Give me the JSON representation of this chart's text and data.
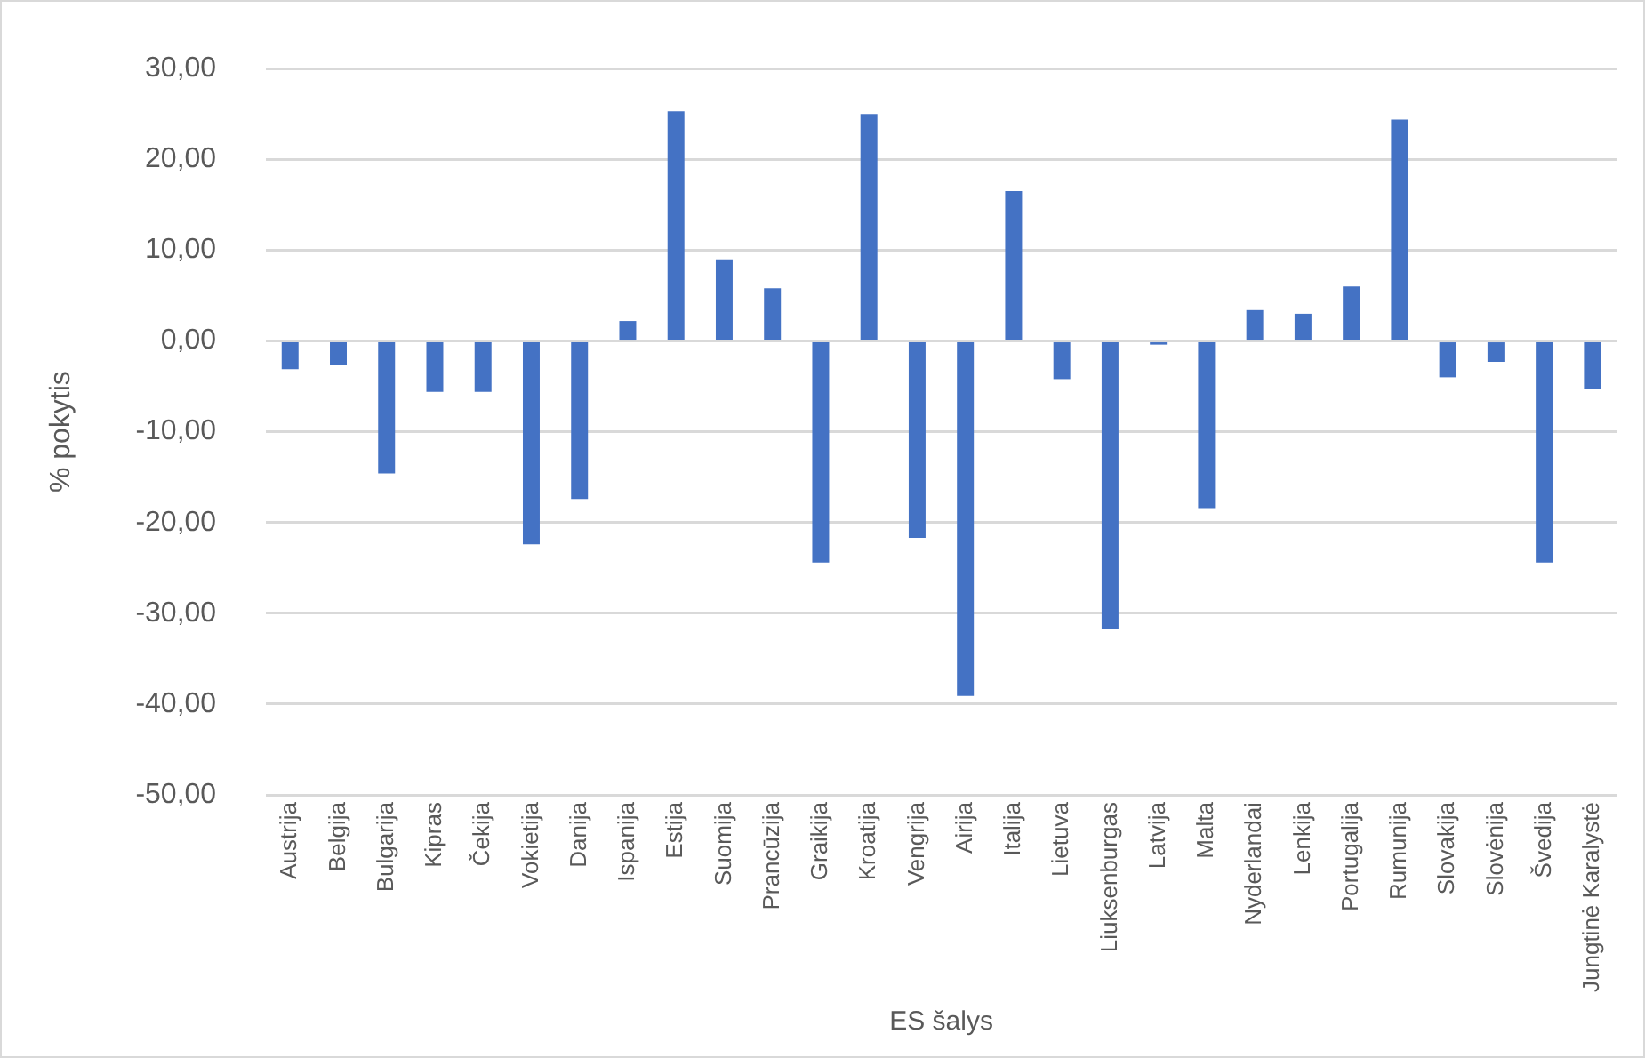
{
  "chart_data": {
    "type": "bar",
    "xlabel": "ES šalys",
    "ylabel": "% pokytis",
    "categories": [
      "Austrija",
      "Belgija",
      "Bulgarija",
      "Kipras",
      "Čekija",
      "Vokietija",
      "Danija",
      "Ispanija",
      "Estija",
      "Suomija",
      "Prancūzija",
      "Graikija",
      "Kroatija",
      "Vengrija",
      "Airija",
      "Italija",
      "Lietuva",
      "Liuksenburgas",
      "Latvija",
      "Malta",
      "Nyderlandai",
      "Lenkija",
      "Portugalija",
      "Rumunija",
      "Slovakija",
      "Slovėnija",
      "Švedija",
      "Jungtinė Karalystė"
    ],
    "values": [
      -3.1,
      -2.6,
      -14.6,
      -5.6,
      -5.6,
      -22.4,
      -17.4,
      2.2,
      25.3,
      9.0,
      5.8,
      -24.4,
      25.0,
      -21.7,
      -39.1,
      16.5,
      -4.2,
      -31.7,
      -0.4,
      -18.4,
      3.4,
      3.0,
      6.0,
      24.4,
      -4.0,
      -2.3,
      -24.4,
      -5.3
    ],
    "color": "#4472c4",
    "ylim": [
      -50,
      30
    ],
    "yticks": [
      {
        "value": -50,
        "label": "-50,00"
      },
      {
        "value": -40,
        "label": "-40,00"
      },
      {
        "value": -30,
        "label": "-30,00"
      },
      {
        "value": -20,
        "label": "-20,00"
      },
      {
        "value": -10,
        "label": "-10,00"
      },
      {
        "value": 0,
        "label": "0,00"
      },
      {
        "value": 10,
        "label": "10,00"
      },
      {
        "value": 20,
        "label": "20,00"
      },
      {
        "value": 30,
        "label": "30,00"
      }
    ],
    "grid": "y",
    "legend": false
  }
}
